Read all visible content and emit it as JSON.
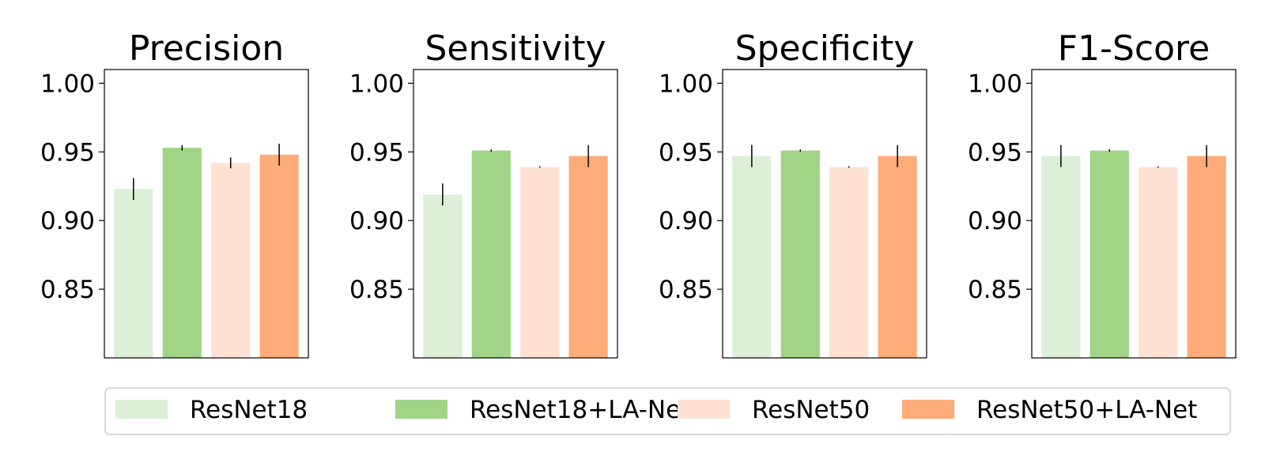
{
  "chart_data": {
    "type": "bar",
    "ylim": [
      0.8,
      1.01
    ],
    "yticks": [
      "1.00",
      "0.95",
      "0.90",
      "0.85"
    ],
    "ytick_values": [
      1.0,
      0.95,
      0.9,
      0.85
    ],
    "legend_position": "bottom",
    "grid": false,
    "series": [
      {
        "name": "ResNet18",
        "color": "#dbf0d6"
      },
      {
        "name": "ResNet18+LA-Net",
        "color": "#a0d486"
      },
      {
        "name": "ResNet50",
        "color": "#fee1d3"
      },
      {
        "name": "ResNet50+LA-Net",
        "color": "#fdab79"
      }
    ],
    "panels": [
      {
        "title": "Precision",
        "values": [
          0.923,
          0.953,
          0.942,
          0.948
        ],
        "errors": [
          0.008,
          0.002,
          0.004,
          0.008
        ]
      },
      {
        "title": "Sensitivity",
        "values": [
          0.919,
          0.951,
          0.939,
          0.947
        ],
        "errors": [
          0.008,
          0.0008,
          0.0005,
          0.008
        ]
      },
      {
        "title": "Specificity",
        "values": [
          0.947,
          0.951,
          0.939,
          0.947
        ],
        "errors": [
          0.008,
          0.0008,
          0.0005,
          0.008
        ]
      },
      {
        "title": "F1-Score",
        "values": [
          0.947,
          0.951,
          0.939,
          0.947
        ],
        "errors": [
          0.008,
          0.0008,
          0.0005,
          0.008
        ]
      }
    ]
  }
}
